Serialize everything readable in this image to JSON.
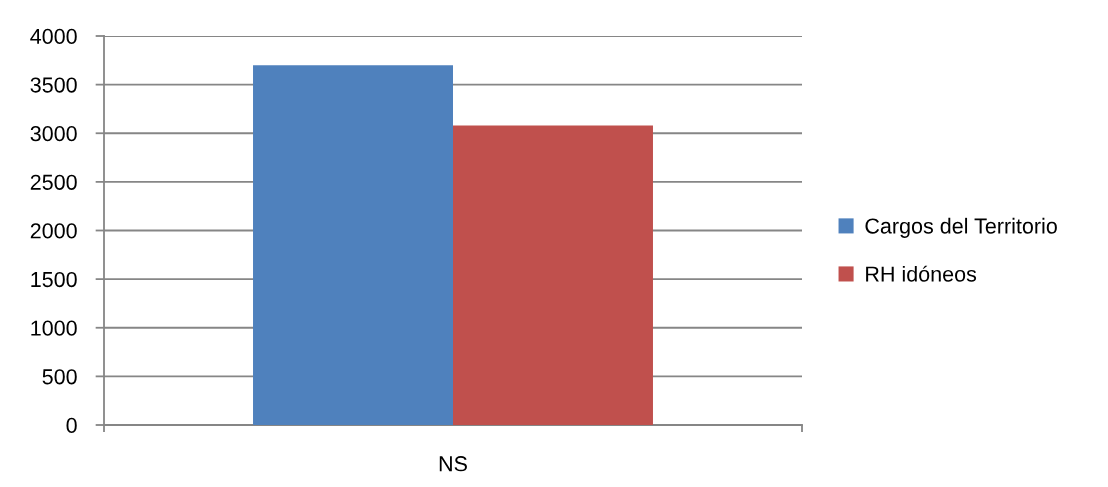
{
  "chart_data": {
    "type": "bar",
    "categories": [
      "NS"
    ],
    "series": [
      {
        "name": "Cargos del Territorio",
        "color": "#4f81bd",
        "values": [
          3700
        ]
      },
      {
        "name": "RH idóneos",
        "color": "#c0504d",
        "values": [
          3080
        ]
      }
    ],
    "ylim": [
      0,
      4000
    ],
    "yticks": [
      0,
      500,
      1000,
      1500,
      2000,
      2500,
      3000,
      3500,
      4000
    ],
    "grid": "y",
    "legend": "right"
  }
}
